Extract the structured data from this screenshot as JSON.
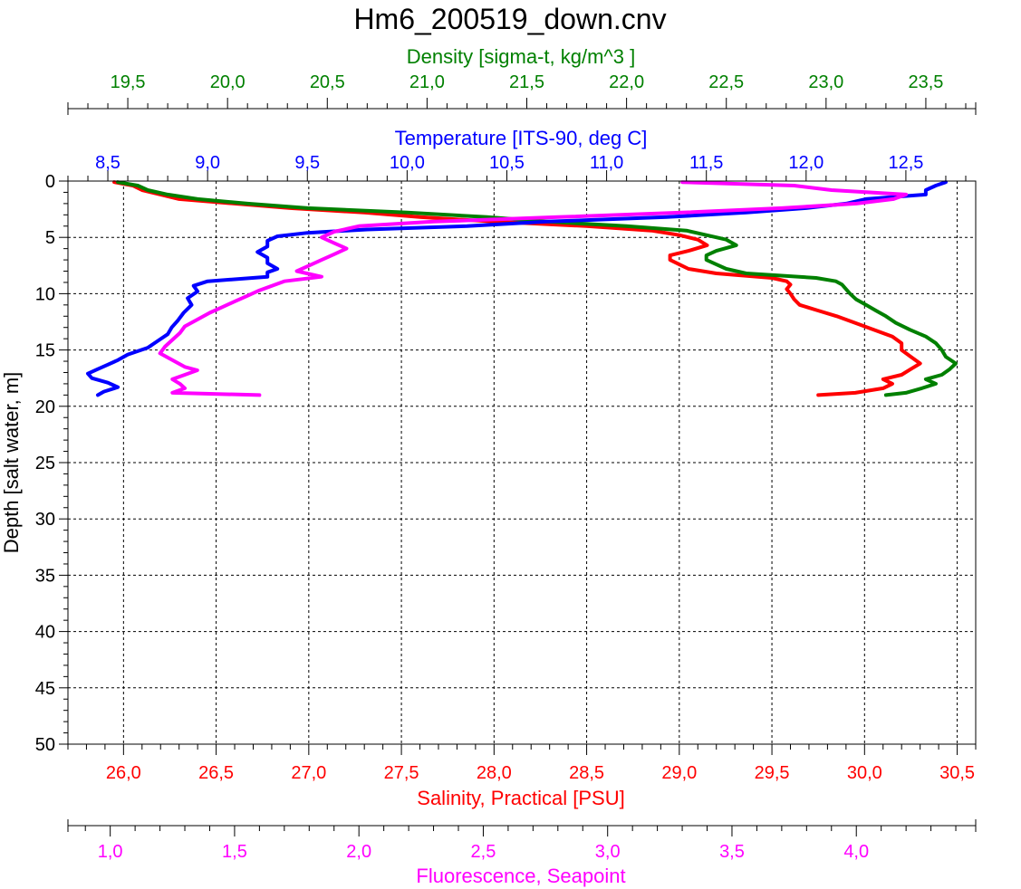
{
  "chart_data": {
    "type": "line",
    "title": "Hm6_200519_down.cnv",
    "colors": {
      "density": "#008000",
      "temperature": "#0000FF",
      "salinity": "#FF0000",
      "fluorescence": "#FF00FF",
      "axis": "#000000",
      "grid": "#000000"
    },
    "y_axis": {
      "label": "Depth [salt water, m]",
      "range": [
        0,
        50
      ],
      "inverted": true,
      "ticks": [
        "0",
        "5",
        "10",
        "15",
        "20",
        "25",
        "30",
        "35",
        "40",
        "45",
        "50"
      ]
    },
    "x_axes": {
      "density": {
        "label": "Density [sigma-t, kg/m^3 ]",
        "range": [
          19.2,
          23.75
        ],
        "ticks": [
          19.5,
          20.0,
          20.5,
          21.0,
          21.5,
          22.0,
          22.5,
          23.0,
          23.5
        ],
        "tick_labels": [
          "19,5",
          "20,0",
          "20,5",
          "21,0",
          "21,5",
          "22,0",
          "22,5",
          "23,0",
          "23,5"
        ]
      },
      "temperature": {
        "label": "Temperature [ITS-90, deg C]",
        "range": [
          8.3,
          12.85
        ],
        "ticks": [
          8.5,
          9.0,
          9.5,
          10.0,
          10.5,
          11.0,
          11.5,
          12.0,
          12.5
        ],
        "tick_labels": [
          "8,5",
          "9,0",
          "9,5",
          "10,0",
          "10,5",
          "11,0",
          "11,5",
          "12,0",
          "12,5"
        ]
      },
      "salinity": {
        "label": "Salinity, Practical [PSU]",
        "range": [
          25.7,
          30.6
        ],
        "ticks": [
          26.0,
          26.5,
          27.0,
          27.5,
          28.0,
          28.5,
          29.0,
          29.5,
          30.0,
          30.5
        ],
        "tick_labels": [
          "26,0",
          "26,5",
          "27,0",
          "27,5",
          "28,0",
          "28,5",
          "29,0",
          "29,5",
          "30,0",
          "30,5"
        ]
      },
      "fluorescence": {
        "label": "Fluorescence, Seapoint",
        "range": [
          0.83,
          4.48
        ],
        "ticks": [
          1.0,
          1.5,
          2.0,
          2.5,
          3.0,
          3.5,
          4.0
        ],
        "tick_labels": [
          "1,0",
          "1,5",
          "2,0",
          "2,5",
          "3,0",
          "3,5",
          "4,0"
        ]
      }
    },
    "grid": true,
    "series": [
      {
        "name": "Temperature",
        "axis": "temperature",
        "depth": [
          0.1,
          0.4,
          0.8,
          1.2,
          1.6,
          2.0,
          2.4,
          2.8,
          3.2,
          3.6,
          4.0,
          4.3,
          4.6,
          4.9,
          5.3,
          5.8,
          6.3,
          6.8,
          7.3,
          7.8,
          8.1,
          8.5,
          8.9,
          9.3,
          9.8,
          10.4,
          11.0,
          11.7,
          12.4,
          13.0,
          13.6,
          14.2,
          14.8,
          15.4,
          15.9,
          16.3,
          16.7,
          17.1,
          17.5,
          17.9,
          18.3,
          18.7,
          19.0
        ],
        "values": [
          12.7,
          12.65,
          12.6,
          12.6,
          12.3,
          12.2,
          12.0,
          11.7,
          11.3,
          10.7,
          10.3,
          9.8,
          9.5,
          9.35,
          9.3,
          9.3,
          9.25,
          9.3,
          9.3,
          9.35,
          9.3,
          9.3,
          9.0,
          8.93,
          8.95,
          8.9,
          8.92,
          8.88,
          8.85,
          8.82,
          8.8,
          8.75,
          8.7,
          8.6,
          8.55,
          8.5,
          8.45,
          8.4,
          8.42,
          8.5,
          8.55,
          8.48,
          8.45
        ]
      },
      {
        "name": "Salinity",
        "axis": "salinity",
        "depth": [
          0.1,
          0.4,
          0.8,
          1.2,
          1.6,
          2.0,
          2.4,
          2.8,
          3.2,
          3.6,
          4.0,
          4.4,
          4.8,
          5.2,
          5.7,
          6.2,
          6.6,
          7.0,
          7.4,
          7.8,
          8.2,
          8.6,
          8.9,
          9.2,
          9.6,
          10.0,
          10.5,
          11.0,
          11.5,
          12.0,
          12.6,
          13.2,
          13.8,
          14.4,
          15.0,
          15.6,
          16.2,
          16.7,
          17.2,
          17.6,
          18.0,
          18.4,
          18.8,
          19.0
        ],
        "values": [
          25.95,
          26.05,
          26.1,
          26.2,
          26.3,
          26.6,
          26.9,
          27.3,
          27.6,
          28.0,
          28.5,
          28.85,
          29.0,
          29.1,
          29.15,
          29.05,
          28.95,
          28.95,
          29.0,
          29.05,
          29.2,
          29.5,
          29.58,
          29.6,
          29.58,
          29.6,
          29.62,
          29.65,
          29.75,
          29.85,
          29.95,
          30.05,
          30.15,
          30.2,
          30.2,
          30.25,
          30.3,
          30.25,
          30.2,
          30.1,
          30.15,
          30.1,
          29.95,
          29.75
        ]
      },
      {
        "name": "Density",
        "axis": "density",
        "depth": [
          0.1,
          0.4,
          0.8,
          1.2,
          1.6,
          2.0,
          2.4,
          2.8,
          3.2,
          3.6,
          4.0,
          4.4,
          4.8,
          5.2,
          5.7,
          6.2,
          6.6,
          7.0,
          7.4,
          7.8,
          8.2,
          8.6,
          8.9,
          9.2,
          9.6,
          10.0,
          10.5,
          11.0,
          11.5,
          12.0,
          12.6,
          13.2,
          13.8,
          14.4,
          15.0,
          15.6,
          16.2,
          16.7,
          17.2,
          17.6,
          18.0,
          18.4,
          18.8,
          19.0
        ],
        "values": [
          19.45,
          19.55,
          19.6,
          19.7,
          19.85,
          20.1,
          20.4,
          20.9,
          21.3,
          21.6,
          22.0,
          22.3,
          22.4,
          22.5,
          22.55,
          22.45,
          22.4,
          22.4,
          22.45,
          22.5,
          22.6,
          22.95,
          23.05,
          23.08,
          23.1,
          23.12,
          23.15,
          23.2,
          23.25,
          23.3,
          23.35,
          23.42,
          23.5,
          23.55,
          23.58,
          23.6,
          23.65,
          23.62,
          23.58,
          23.5,
          23.55,
          23.48,
          23.4,
          23.3
        ]
      },
      {
        "name": "Fluorescence",
        "axis": "fluorescence",
        "depth": [
          0.1,
          0.4,
          0.8,
          1.2,
          1.6,
          2.0,
          2.4,
          2.8,
          3.2,
          3.6,
          4.0,
          4.5,
          5.0,
          5.5,
          6.0,
          6.5,
          7.0,
          7.5,
          8.0,
          8.5,
          8.9,
          9.3,
          9.7,
          10.2,
          10.7,
          11.2,
          11.7,
          12.3,
          12.9,
          13.5,
          14.1,
          14.7,
          15.3,
          15.9,
          16.5,
          16.8,
          17.2,
          17.6,
          18.0,
          18.4,
          18.8,
          19.0
        ],
        "values": [
          3.3,
          3.75,
          3.9,
          4.2,
          4.15,
          4.0,
          3.7,
          3.3,
          2.8,
          2.3,
          2.0,
          1.9,
          1.85,
          1.9,
          1.95,
          1.9,
          1.85,
          1.8,
          1.75,
          1.85,
          1.7,
          1.65,
          1.6,
          1.55,
          1.5,
          1.45,
          1.4,
          1.35,
          1.3,
          1.28,
          1.25,
          1.22,
          1.2,
          1.25,
          1.3,
          1.35,
          1.3,
          1.25,
          1.28,
          1.3,
          1.25,
          1.6
        ]
      }
    ]
  }
}
